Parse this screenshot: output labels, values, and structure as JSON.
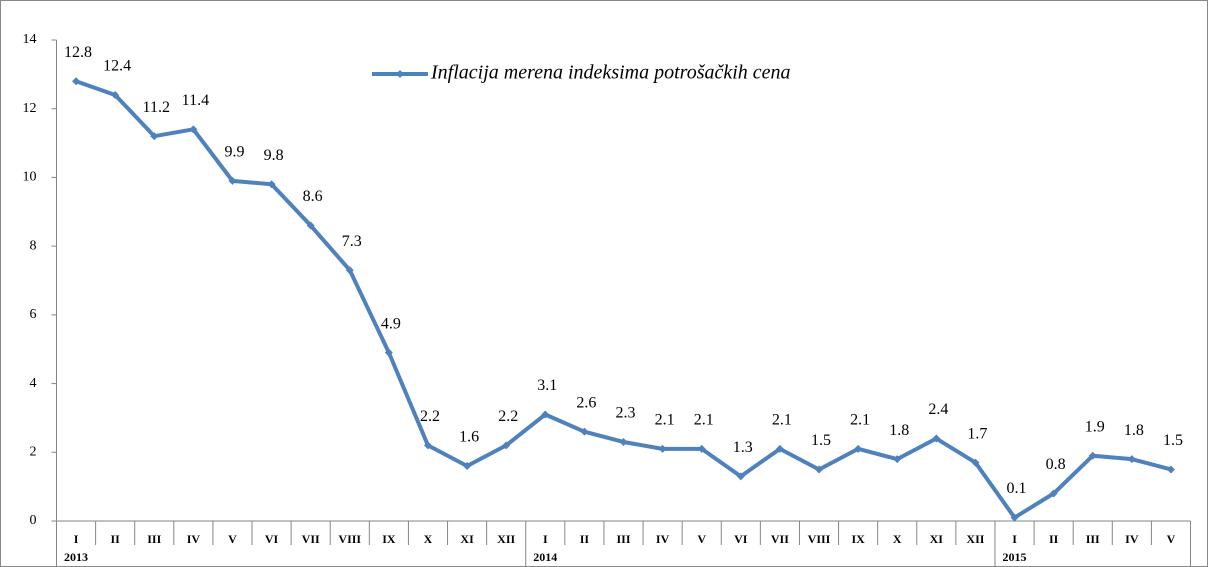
{
  "chart_data": {
    "type": "line",
    "categories": [
      "I",
      "II",
      "III",
      "IV",
      "V",
      "VI",
      "VII",
      "VIII",
      "IX",
      "X",
      "XI",
      "XII",
      "I",
      "II",
      "III",
      "IV",
      "V",
      "VI",
      "VII",
      "VIII",
      "IX",
      "X",
      "XI",
      "XII",
      "I",
      "II",
      "III",
      "IV",
      "V"
    ],
    "category_groups": [
      {
        "label": "2013",
        "count": 12
      },
      {
        "label": "2014",
        "count": 12
      },
      {
        "label": "2015",
        "count": 5
      }
    ],
    "series": [
      {
        "name": "Inflacija merena indeksima potrošačkih cena",
        "color": "#4f81bd",
        "values": [
          12.8,
          12.4,
          11.2,
          11.4,
          9.9,
          9.8,
          8.6,
          7.3,
          4.9,
          2.2,
          1.6,
          2.2,
          3.1,
          2.6,
          2.3,
          2.1,
          2.1,
          1.3,
          2.1,
          1.5,
          2.1,
          1.8,
          2.4,
          1.7,
          0.1,
          0.8,
          1.9,
          1.8,
          1.5
        ]
      }
    ],
    "ylim": [
      0,
      14
    ],
    "yticks": [
      0,
      2,
      4,
      6,
      8,
      10,
      12,
      14
    ],
    "legend": "top",
    "grid": false
  }
}
